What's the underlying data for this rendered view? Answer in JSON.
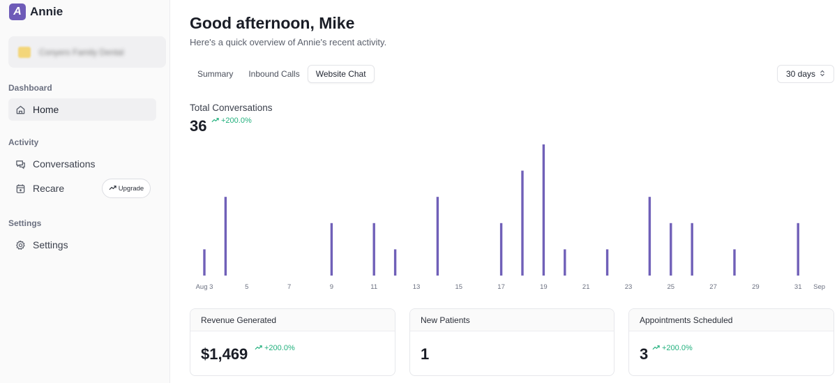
{
  "brand": {
    "logo_letter": "A",
    "name": "Annie"
  },
  "org": {
    "name": "Conyers Family Dental"
  },
  "sidebar": {
    "sections": [
      {
        "label": "Dashboard"
      },
      {
        "label": "Activity"
      },
      {
        "label": "Settings"
      }
    ],
    "items": [
      {
        "label": "Home",
        "icon": "home-icon"
      },
      {
        "label": "Conversations",
        "icon": "chat-icon"
      },
      {
        "label": "Recare",
        "icon": "calendar-plus-icon"
      },
      {
        "label": "Settings",
        "icon": "gear-icon"
      }
    ],
    "upgrade_label": "Upgrade"
  },
  "header": {
    "greeting": "Good afternoon, Mike",
    "subtitle": "Here's a quick overview of Annie's recent activity."
  },
  "tabs": [
    {
      "label": "Summary"
    },
    {
      "label": "Inbound Calls"
    },
    {
      "label": "Website Chat"
    }
  ],
  "range": {
    "value": "30 days"
  },
  "summary": {
    "title": "Total Conversations",
    "total": "36",
    "change": "+200.0%"
  },
  "chart_data": {
    "type": "bar",
    "title": "",
    "x": [
      "Aug 3",
      "4",
      "5",
      "6",
      "7",
      "8",
      "9",
      "10",
      "11",
      "12",
      "13",
      "14",
      "15",
      "16",
      "17",
      "18",
      "19",
      "20",
      "21",
      "22",
      "23",
      "24",
      "25",
      "26",
      "27",
      "28",
      "29",
      "30",
      "31",
      "Sep"
    ],
    "x_tick_labels": [
      "Aug 3",
      "5",
      "7",
      "9",
      "11",
      "13",
      "15",
      "17",
      "19",
      "21",
      "23",
      "25",
      "27",
      "29",
      "31",
      "Sep"
    ],
    "values": [
      1,
      3,
      0,
      0,
      0,
      0,
      2,
      0,
      2,
      1,
      0,
      3,
      0,
      0,
      2,
      4,
      5,
      1,
      0,
      1,
      0,
      3,
      2,
      2,
      0,
      1,
      0,
      0,
      2,
      0
    ],
    "ylim": [
      0,
      5
    ],
    "color": "#7060b8",
    "grid": false
  },
  "stats": [
    {
      "label": "Revenue Generated",
      "value": "$1,469",
      "change": "+200.0%"
    },
    {
      "label": "New Patients",
      "value": "1",
      "change": ""
    },
    {
      "label": "Appointments Scheduled",
      "value": "3",
      "change": "+200.0%"
    }
  ],
  "colors": {
    "accent": "#6e5bb8",
    "positive": "#22b07d",
    "bar": "#7060b8"
  }
}
